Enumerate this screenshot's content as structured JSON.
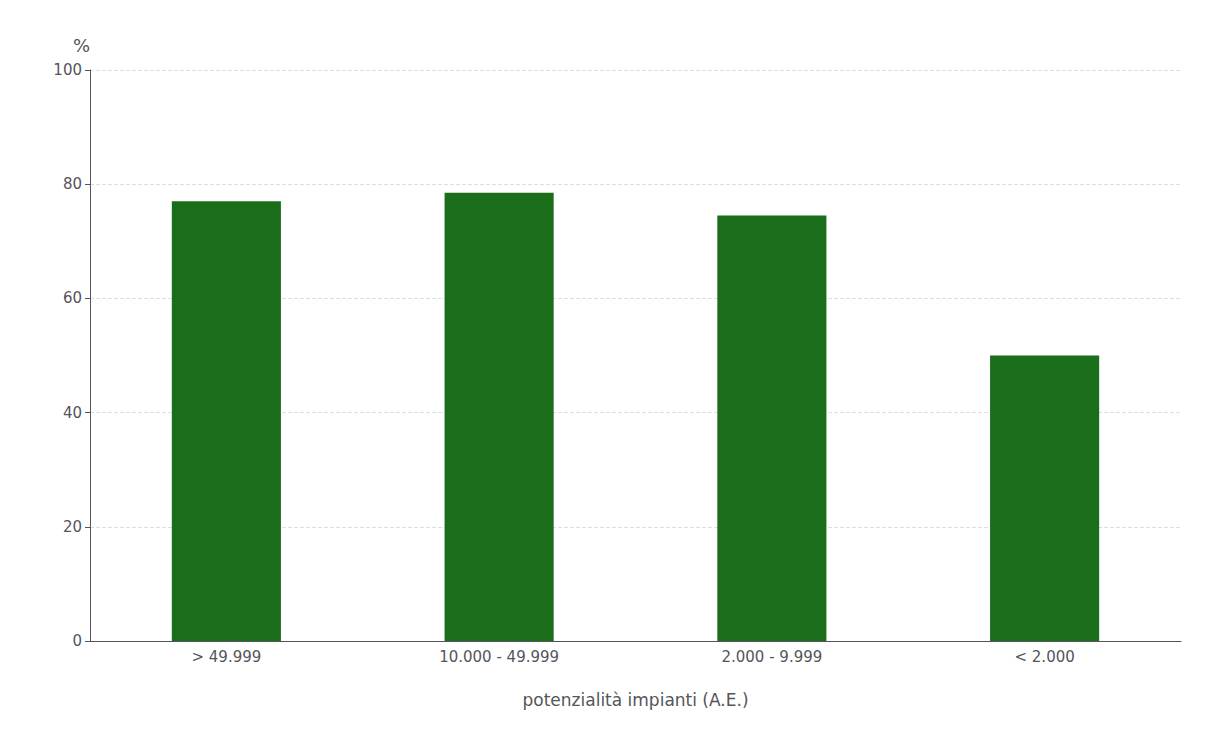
{
  "chart_data": {
    "type": "bar",
    "categories": [
      "> 49.999",
      "10.000 - 49.999",
      "2.000 - 9.999",
      "< 2.000"
    ],
    "values": [
      77.0,
      78.5,
      74.5,
      50.0
    ],
    "color": "#1a6e1a",
    "xlabel": "potenzialità impianti (A.E.)",
    "ylabel": "%",
    "ylim": [
      0,
      100
    ],
    "yticks": [
      0,
      20,
      40,
      60,
      80,
      100
    ],
    "grid": true
  }
}
